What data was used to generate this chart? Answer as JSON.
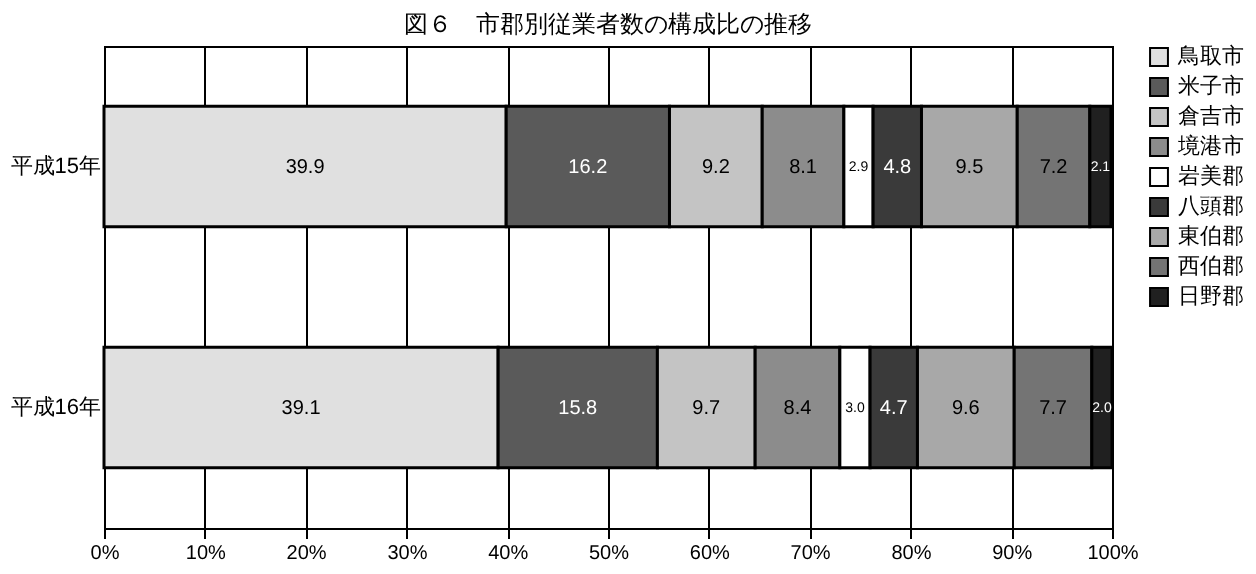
{
  "chart_data": {
    "type": "bar",
    "title": "図６　市郡別従業者数の構成比の推移",
    "orientation": "horizontal",
    "stacked": true,
    "categories": [
      "平成15年",
      "平成16年"
    ],
    "series": [
      {
        "name": "鳥取市",
        "color": "#e0e0e0",
        "values": [
          39.9,
          39.1
        ]
      },
      {
        "name": "米子市",
        "color": "#5a5a5a",
        "values": [
          16.2,
          15.8
        ]
      },
      {
        "name": "倉吉市",
        "color": "#c4c4c4",
        "values": [
          9.2,
          9.7
        ]
      },
      {
        "name": "境港市",
        "color": "#8c8c8c",
        "values": [
          8.1,
          8.4
        ]
      },
      {
        "name": "岩美郡",
        "color": "#ffffff",
        "values": [
          2.9,
          3.0
        ]
      },
      {
        "name": "八頭郡",
        "color": "#3a3a3a",
        "values": [
          4.8,
          4.7
        ]
      },
      {
        "name": "東伯郡",
        "color": "#a8a8a8",
        "values": [
          9.5,
          9.6
        ]
      },
      {
        "name": "西伯郡",
        "color": "#747474",
        "values": [
          7.2,
          7.7
        ]
      },
      {
        "name": "日野郡",
        "color": "#202020",
        "values": [
          2.1,
          2.0
        ]
      }
    ],
    "xlim": [
      0,
      100
    ],
    "xticks": [
      {
        "value": 0,
        "label": "0%"
      },
      {
        "value": 10,
        "label": "10%"
      },
      {
        "value": 20,
        "label": "20%"
      },
      {
        "value": 30,
        "label": "30%"
      },
      {
        "value": 40,
        "label": "40%"
      },
      {
        "value": 50,
        "label": "50%"
      },
      {
        "value": 60,
        "label": "60%"
      },
      {
        "value": 70,
        "label": "70%"
      },
      {
        "value": 80,
        "label": "80%"
      },
      {
        "value": 90,
        "label": "90%"
      },
      {
        "value": 100,
        "label": "100%"
      }
    ],
    "value_labels": [
      [
        "39.9",
        "39.1"
      ],
      [
        "16.2",
        "15.8"
      ],
      [
        "9.2",
        "9.7"
      ],
      [
        "8.1",
        "8.4"
      ],
      [
        "2.9",
        "3.0"
      ],
      [
        "4.8",
        "4.7"
      ],
      [
        "9.5",
        "9.6"
      ],
      [
        "7.2",
        "7.7"
      ],
      [
        "2.1",
        "2.0"
      ]
    ],
    "grid": true,
    "legend": "right"
  }
}
